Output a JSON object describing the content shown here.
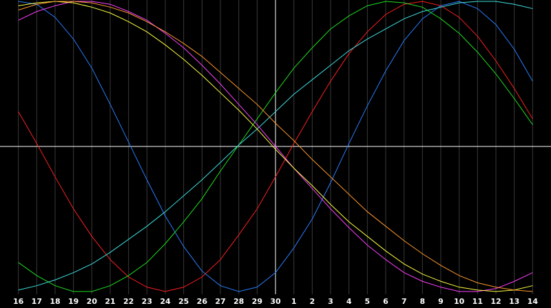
{
  "chart_data": {
    "type": "line",
    "categories": [
      "16",
      "17",
      "18",
      "19",
      "20",
      "21",
      "22",
      "23",
      "24",
      "25",
      "26",
      "27",
      "28",
      "29",
      "30",
      "1",
      "2",
      "3",
      "4",
      "5",
      "6",
      "7",
      "8",
      "9",
      "10",
      "11",
      "12",
      "13",
      "14"
    ],
    "ylim": [
      -1,
      1
    ],
    "series": [
      {
        "color": "#ff2020",
        "values": [
          0.24,
          0.02,
          -0.21,
          -0.43,
          -0.62,
          -0.78,
          -0.9,
          -0.97,
          -1,
          -0.97,
          -0.9,
          -0.78,
          -0.61,
          -0.43,
          -0.21,
          0.02,
          0.24,
          0.45,
          0.64,
          0.79,
          0.91,
          0.98,
          1,
          0.97,
          0.89,
          0.76,
          0.59,
          0.4,
          0.19
        ]
      },
      {
        "color": "#2a7fff",
        "values": [
          1,
          0.98,
          0.89,
          0.74,
          0.54,
          0.29,
          0.03,
          -0.23,
          -0.48,
          -0.69,
          -0.86,
          -0.96,
          -1,
          -0.97,
          -0.87,
          -0.7,
          -0.5,
          -0.25,
          0.02,
          0.28,
          0.52,
          0.73,
          0.88,
          0.97,
          1,
          0.95,
          0.84,
          0.67,
          0.45
        ]
      },
      {
        "color": "#20e020",
        "values": [
          -0.8,
          -0.89,
          -0.96,
          -1,
          -1,
          -0.96,
          -0.89,
          -0.8,
          -0.67,
          -0.52,
          -0.36,
          -0.17,
          0.01,
          0.19,
          0.37,
          0.54,
          0.68,
          0.81,
          0.9,
          0.97,
          1,
          0.99,
          0.96,
          0.88,
          0.78,
          0.65,
          0.5,
          0.33,
          0.15
        ]
      },
      {
        "color": "#40e0e0",
        "values": [
          -0.99,
          -0.96,
          -0.92,
          -0.87,
          -0.81,
          -0.73,
          -0.64,
          -0.55,
          -0.45,
          -0.34,
          -0.23,
          -0.11,
          0.01,
          0.12,
          0.24,
          0.36,
          0.46,
          0.56,
          0.66,
          0.74,
          0.81,
          0.88,
          0.93,
          0.96,
          0.99,
          1,
          1,
          0.98,
          0.95
        ]
      },
      {
        "color": "#ff40ff",
        "values": [
          0.87,
          0.93,
          0.97,
          1,
          1,
          0.98,
          0.93,
          0.87,
          0.78,
          0.68,
          0.56,
          0.43,
          0.29,
          0.15,
          0,
          -0.15,
          -0.29,
          -0.43,
          -0.56,
          -0.68,
          -0.78,
          -0.87,
          -0.93,
          -0.97,
          -1,
          -1,
          -0.98,
          -0.93,
          -0.87
        ]
      },
      {
        "color": "#ffff40",
        "values": [
          0.97,
          0.99,
          1,
          0.99,
          0.96,
          0.92,
          0.86,
          0.79,
          0.7,
          0.6,
          0.49,
          0.37,
          0.25,
          0.12,
          -0.02,
          -0.15,
          -0.27,
          -0.4,
          -0.52,
          -0.62,
          -0.72,
          -0.81,
          -0.88,
          -0.93,
          -0.97,
          -0.99,
          -1,
          -0.99,
          -0.96
        ]
      },
      {
        "color": "#ff9a30",
        "values": [
          0.94,
          0.98,
          1,
          1,
          0.99,
          0.96,
          0.92,
          0.86,
          0.79,
          0.71,
          0.62,
          0.51,
          0.4,
          0.29,
          0.16,
          0.04,
          -0.09,
          -0.21,
          -0.33,
          -0.45,
          -0.55,
          -0.65,
          -0.74,
          -0.82,
          -0.89,
          -0.94,
          -0.97,
          -0.99,
          -1
        ]
      }
    ]
  }
}
